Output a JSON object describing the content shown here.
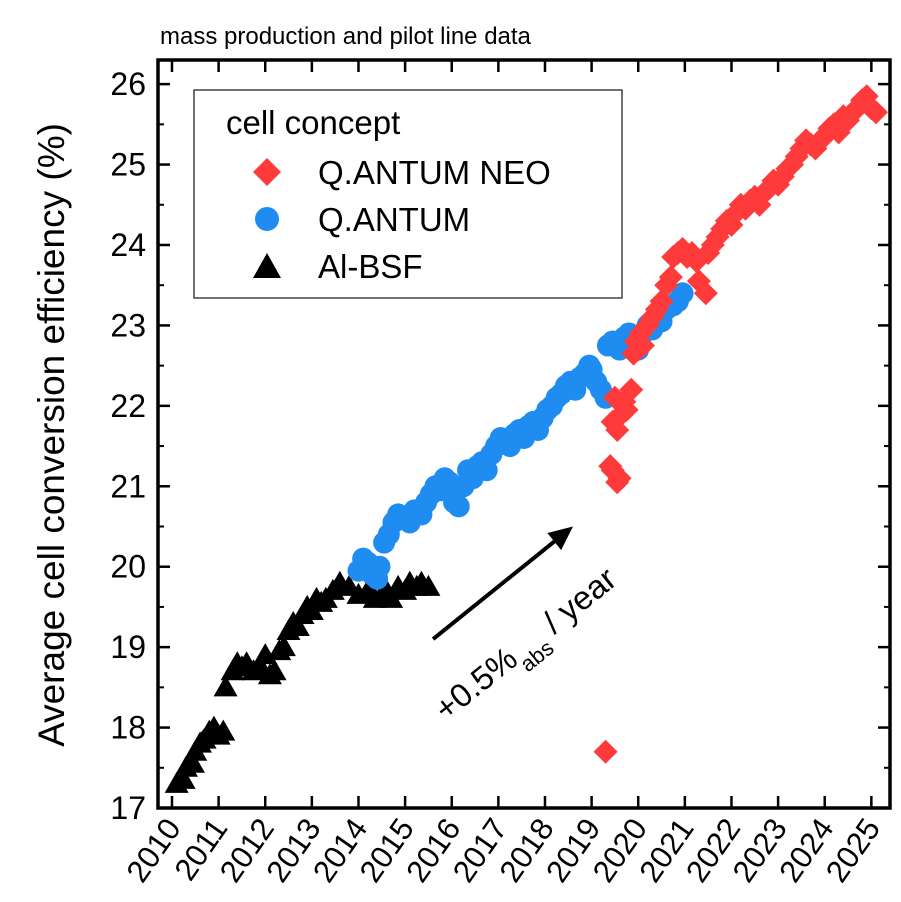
{
  "chart_data": {
    "type": "scatter",
    "title": "mass production and pilot line data",
    "ylabel": "Average cell conversion efficiency (%)",
    "xlabel": "",
    "xlim": [
      2009.7,
      2025.4
    ],
    "ylim": [
      17,
      26.3
    ],
    "xticks": [
      2010,
      2011,
      2012,
      2013,
      2014,
      2015,
      2016,
      2017,
      2018,
      2019,
      2020,
      2021,
      2022,
      2023,
      2024,
      2025
    ],
    "xtick_labels": [
      "2010",
      "2011",
      "2012",
      "2013",
      "2014",
      "2015",
      "2016",
      "2017",
      "2018",
      "2019",
      "2020",
      "2021",
      "2022",
      "2023",
      "2024",
      "2025"
    ],
    "yticks": [
      17,
      18,
      19,
      20,
      21,
      22,
      23,
      24,
      25,
      26
    ],
    "ytick_labels": [
      "17",
      "18",
      "19",
      "20",
      "21",
      "22",
      "23",
      "24",
      "25",
      "26"
    ],
    "grid": false,
    "legend": {
      "title": "cell concept",
      "placement": "top-left",
      "entries": [
        "Q.ANTUM NEO",
        "Q.ANTUM",
        "Al-BSF"
      ]
    },
    "annotation": {
      "main": "+0.5%",
      "sub": "abs",
      "tail": " / year",
      "arrow_from": [
        2015.6,
        19.1
      ],
      "arrow_to": [
        2018.6,
        20.5
      ]
    },
    "dashed_line": [
      [
        2010.6,
        17.9
      ],
      [
        2010.9,
        18.1
      ]
    ],
    "series": [
      {
        "name": "Al-BSF",
        "marker": "triangle",
        "color": "#000000",
        "points": [
          [
            2010.1,
            17.3
          ],
          [
            2010.25,
            17.35
          ],
          [
            2010.3,
            17.5
          ],
          [
            2010.45,
            17.55
          ],
          [
            2010.5,
            17.7
          ],
          [
            2010.6,
            17.8
          ],
          [
            2010.7,
            17.85
          ],
          [
            2010.8,
            17.95
          ],
          [
            2010.9,
            18.0
          ],
          [
            2011.0,
            17.9
          ],
          [
            2011.1,
            17.95
          ],
          [
            2011.15,
            18.5
          ],
          [
            2011.3,
            18.7
          ],
          [
            2011.4,
            18.8
          ],
          [
            2011.5,
            18.75
          ],
          [
            2011.6,
            18.8
          ],
          [
            2011.75,
            18.7
          ],
          [
            2011.9,
            18.75
          ],
          [
            2012.0,
            18.9
          ],
          [
            2012.1,
            18.65
          ],
          [
            2012.2,
            18.7
          ],
          [
            2012.3,
            18.95
          ],
          [
            2012.4,
            19.0
          ],
          [
            2012.5,
            19.2
          ],
          [
            2012.6,
            19.3
          ],
          [
            2012.7,
            19.25
          ],
          [
            2012.8,
            19.4
          ],
          [
            2012.9,
            19.5
          ],
          [
            2013.0,
            19.45
          ],
          [
            2013.1,
            19.6
          ],
          [
            2013.2,
            19.55
          ],
          [
            2013.3,
            19.6
          ],
          [
            2013.45,
            19.7
          ],
          [
            2013.6,
            19.8
          ],
          [
            2013.8,
            19.75
          ],
          [
            2014.0,
            19.65
          ],
          [
            2014.2,
            19.7
          ],
          [
            2014.35,
            19.6
          ],
          [
            2014.5,
            19.65
          ],
          [
            2014.6,
            19.7
          ],
          [
            2014.7,
            19.6
          ],
          [
            2014.85,
            19.75
          ],
          [
            2015.0,
            19.7
          ],
          [
            2015.1,
            19.8
          ],
          [
            2015.25,
            19.75
          ],
          [
            2015.35,
            19.8
          ],
          [
            2015.5,
            19.75
          ]
        ]
      },
      {
        "name": "Q.ANTUM",
        "marker": "circle",
        "color": "#1e8cf0",
        "points": [
          [
            2014.0,
            19.95
          ],
          [
            2014.1,
            20.1
          ],
          [
            2014.2,
            20.05
          ],
          [
            2014.3,
            19.9
          ],
          [
            2014.4,
            19.85
          ],
          [
            2014.45,
            20.0
          ],
          [
            2014.55,
            20.3
          ],
          [
            2014.65,
            20.4
          ],
          [
            2014.75,
            20.55
          ],
          [
            2014.85,
            20.65
          ],
          [
            2014.95,
            20.6
          ],
          [
            2015.1,
            20.55
          ],
          [
            2015.2,
            20.7
          ],
          [
            2015.35,
            20.65
          ],
          [
            2015.45,
            20.8
          ],
          [
            2015.55,
            20.9
          ],
          [
            2015.65,
            21.0
          ],
          [
            2015.75,
            20.95
          ],
          [
            2015.85,
            21.1
          ],
          [
            2015.95,
            21.05
          ],
          [
            2016.05,
            20.8
          ],
          [
            2016.15,
            20.75
          ],
          [
            2016.25,
            21.0
          ],
          [
            2016.35,
            21.2
          ],
          [
            2016.45,
            21.1
          ],
          [
            2016.55,
            21.25
          ],
          [
            2016.65,
            21.3
          ],
          [
            2016.75,
            21.2
          ],
          [
            2016.85,
            21.4
          ],
          [
            2016.95,
            21.5
          ],
          [
            2017.05,
            21.6
          ],
          [
            2017.15,
            21.55
          ],
          [
            2017.25,
            21.5
          ],
          [
            2017.35,
            21.65
          ],
          [
            2017.45,
            21.7
          ],
          [
            2017.55,
            21.6
          ],
          [
            2017.65,
            21.75
          ],
          [
            2017.75,
            21.8
          ],
          [
            2017.85,
            21.7
          ],
          [
            2017.95,
            21.85
          ],
          [
            2018.05,
            21.95
          ],
          [
            2018.15,
            22.0
          ],
          [
            2018.25,
            22.1
          ],
          [
            2018.35,
            22.15
          ],
          [
            2018.45,
            22.25
          ],
          [
            2018.55,
            22.3
          ],
          [
            2018.65,
            22.2
          ],
          [
            2018.75,
            22.35
          ],
          [
            2018.85,
            22.4
          ],
          [
            2018.95,
            22.5
          ],
          [
            2019.0,
            22.45
          ],
          [
            2019.1,
            22.3
          ],
          [
            2019.2,
            22.2
          ],
          [
            2019.3,
            22.1
          ],
          [
            2019.35,
            22.75
          ],
          [
            2019.45,
            22.8
          ],
          [
            2019.6,
            22.7
          ],
          [
            2019.7,
            22.85
          ],
          [
            2019.8,
            22.9
          ],
          [
            2019.9,
            22.8
          ],
          [
            2020.0,
            22.7
          ],
          [
            2020.1,
            22.9
          ],
          [
            2020.2,
            23.0
          ],
          [
            2020.3,
            22.95
          ],
          [
            2020.4,
            23.1
          ],
          [
            2020.5,
            23.05
          ],
          [
            2020.6,
            23.2
          ],
          [
            2020.75,
            23.25
          ],
          [
            2020.85,
            23.3
          ],
          [
            2020.95,
            23.4
          ]
        ]
      },
      {
        "name": "Q.ANTUM NEO",
        "marker": "diamond",
        "color": "#ff3a3a",
        "points": [
          [
            2019.3,
            17.7
          ],
          [
            2019.4,
            21.25
          ],
          [
            2019.45,
            21.2
          ],
          [
            2019.55,
            21.05
          ],
          [
            2019.6,
            21.1
          ],
          [
            2019.45,
            21.8
          ],
          [
            2019.55,
            21.7
          ],
          [
            2019.65,
            21.9
          ],
          [
            2019.75,
            21.95
          ],
          [
            2019.5,
            22.1
          ],
          [
            2019.7,
            22.05
          ],
          [
            2019.85,
            22.2
          ],
          [
            2019.9,
            22.65
          ],
          [
            2019.95,
            22.8
          ],
          [
            2020.0,
            22.7
          ],
          [
            2020.05,
            22.9
          ],
          [
            2020.1,
            22.75
          ],
          [
            2020.2,
            23.0
          ],
          [
            2020.3,
            23.1
          ],
          [
            2020.4,
            23.2
          ],
          [
            2020.5,
            23.3
          ],
          [
            2020.6,
            23.5
          ],
          [
            2020.7,
            23.6
          ],
          [
            2020.75,
            23.85
          ],
          [
            2020.85,
            23.9
          ],
          [
            2020.95,
            23.95
          ],
          [
            2021.05,
            23.85
          ],
          [
            2021.15,
            23.9
          ],
          [
            2021.25,
            23.8
          ],
          [
            2021.3,
            23.55
          ],
          [
            2021.45,
            23.4
          ],
          [
            2021.5,
            23.9
          ],
          [
            2021.6,
            24.0
          ],
          [
            2021.7,
            24.1
          ],
          [
            2021.8,
            24.2
          ],
          [
            2021.9,
            24.3
          ],
          [
            2022.0,
            24.25
          ],
          [
            2022.1,
            24.4
          ],
          [
            2022.2,
            24.5
          ],
          [
            2022.3,
            24.45
          ],
          [
            2022.4,
            24.55
          ],
          [
            2022.5,
            24.6
          ],
          [
            2022.6,
            24.5
          ],
          [
            2022.7,
            24.65
          ],
          [
            2022.8,
            24.7
          ],
          [
            2022.9,
            24.8
          ],
          [
            2023.0,
            24.75
          ],
          [
            2023.1,
            24.85
          ],
          [
            2023.2,
            24.95
          ],
          [
            2023.3,
            25.0
          ],
          [
            2023.4,
            25.1
          ],
          [
            2023.5,
            25.2
          ],
          [
            2023.6,
            25.3
          ],
          [
            2023.7,
            25.25
          ],
          [
            2023.8,
            25.2
          ],
          [
            2023.9,
            25.3
          ],
          [
            2024.0,
            25.35
          ],
          [
            2024.1,
            25.45
          ],
          [
            2024.2,
            25.5
          ],
          [
            2024.3,
            25.4
          ],
          [
            2024.4,
            25.6
          ],
          [
            2024.5,
            25.55
          ],
          [
            2024.6,
            25.65
          ],
          [
            2024.7,
            25.7
          ],
          [
            2024.8,
            25.8
          ],
          [
            2024.9,
            25.85
          ],
          [
            2025.0,
            25.7
          ],
          [
            2025.1,
            25.65
          ]
        ]
      }
    ]
  }
}
